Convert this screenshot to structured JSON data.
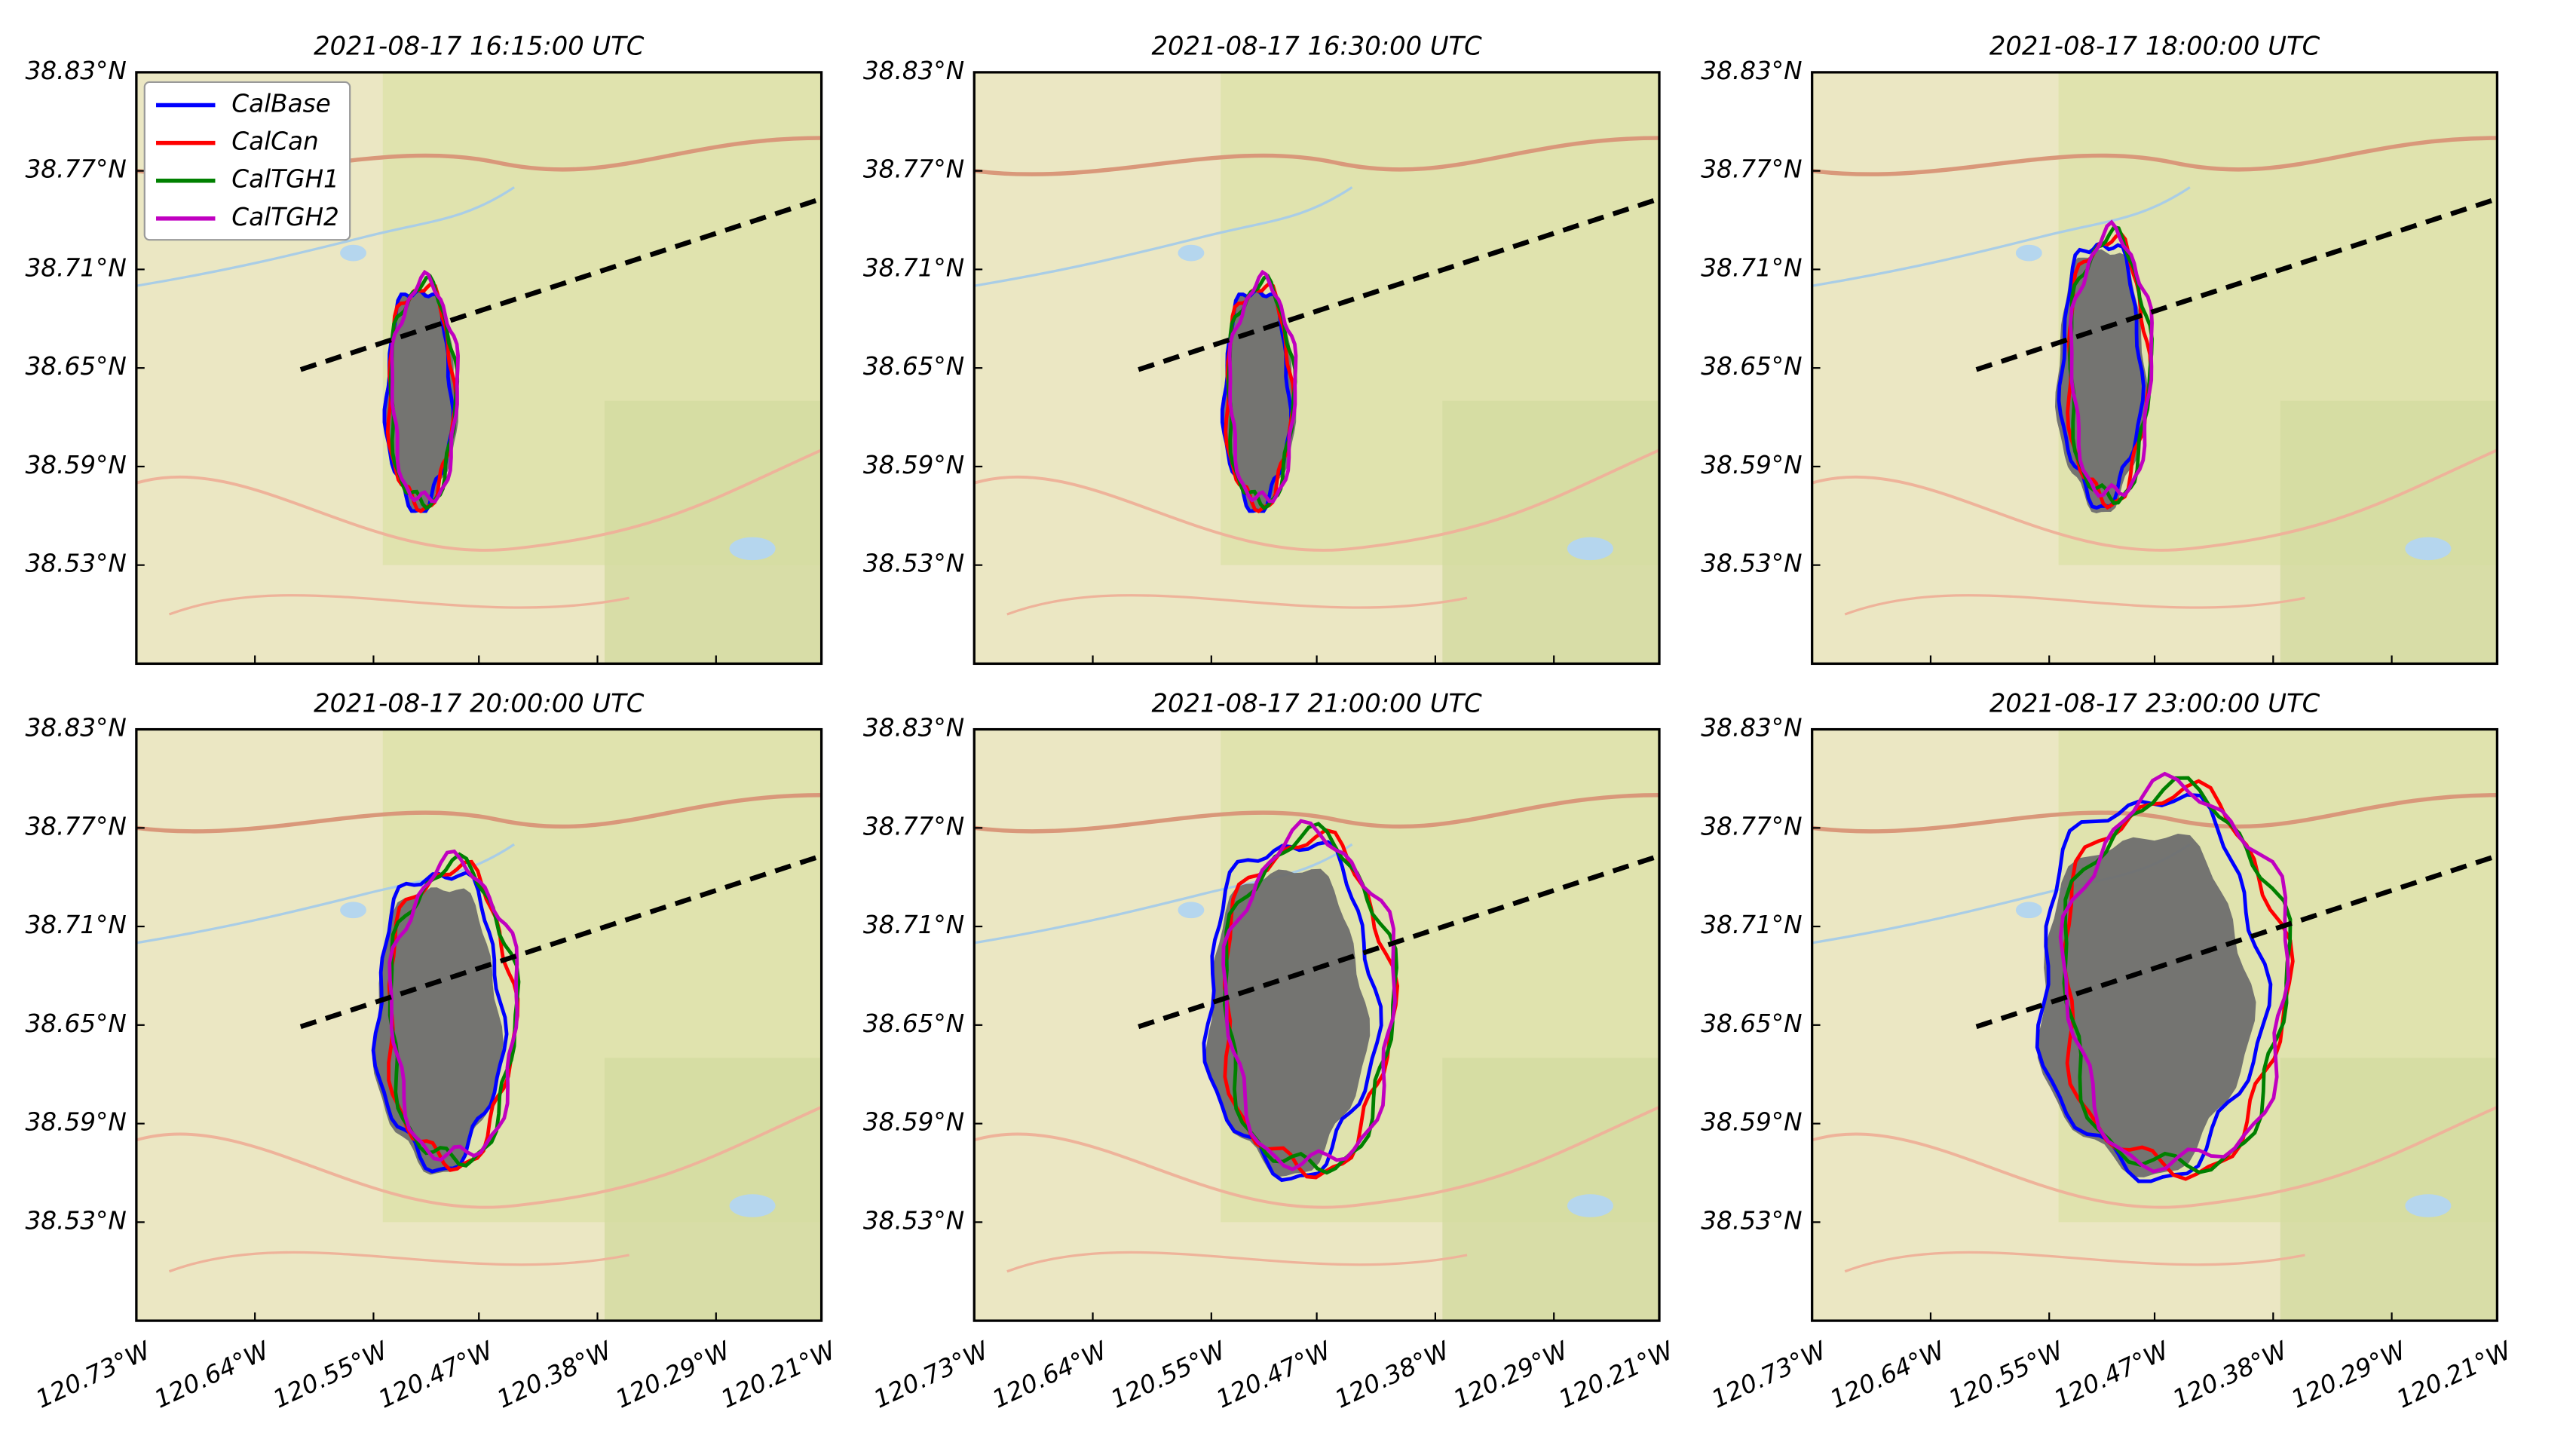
{
  "panels": [
    {
      "title": "2021-08-17 16:15:00 UTC"
    },
    {
      "title": "2021-08-17 16:30:00 UTC"
    },
    {
      "title": "2021-08-17 18:00:00 UTC"
    },
    {
      "title": "2021-08-17 20:00:00 UTC"
    },
    {
      "title": "2021-08-17 21:00:00 UTC"
    },
    {
      "title": "2021-08-17 23:00:00 UTC"
    }
  ],
  "xlim": [
    -120.73,
    -120.21
  ],
  "ylim": [
    38.47,
    38.83
  ],
  "xticks": [
    {
      "value": -120.73,
      "label": "120.73°W"
    },
    {
      "value": -120.64,
      "label": "120.64°W"
    },
    {
      "value": -120.55,
      "label": "120.55°W"
    },
    {
      "value": -120.47,
      "label": "120.47°W"
    },
    {
      "value": -120.38,
      "label": "120.38°W"
    },
    {
      "value": -120.29,
      "label": "120.29°W"
    },
    {
      "value": -120.21,
      "label": "120.21°W"
    }
  ],
  "yticks": [
    {
      "value": 38.83,
      "label": "38.83°N"
    },
    {
      "value": 38.77,
      "label": "38.77°N"
    },
    {
      "value": 38.71,
      "label": "38.71°N"
    },
    {
      "value": 38.65,
      "label": "38.65°N"
    },
    {
      "value": 38.59,
      "label": "38.59°N"
    },
    {
      "value": 38.53,
      "label": "38.53°N"
    }
  ],
  "legend": [
    {
      "name": "CalBase",
      "color": "#0000ff"
    },
    {
      "name": "CalCan",
      "color": "#ff0000"
    },
    {
      "name": "CalTGH1",
      "color": "#008000"
    },
    {
      "name": "CalTGH2",
      "color": "#c000c0"
    }
  ]
}
